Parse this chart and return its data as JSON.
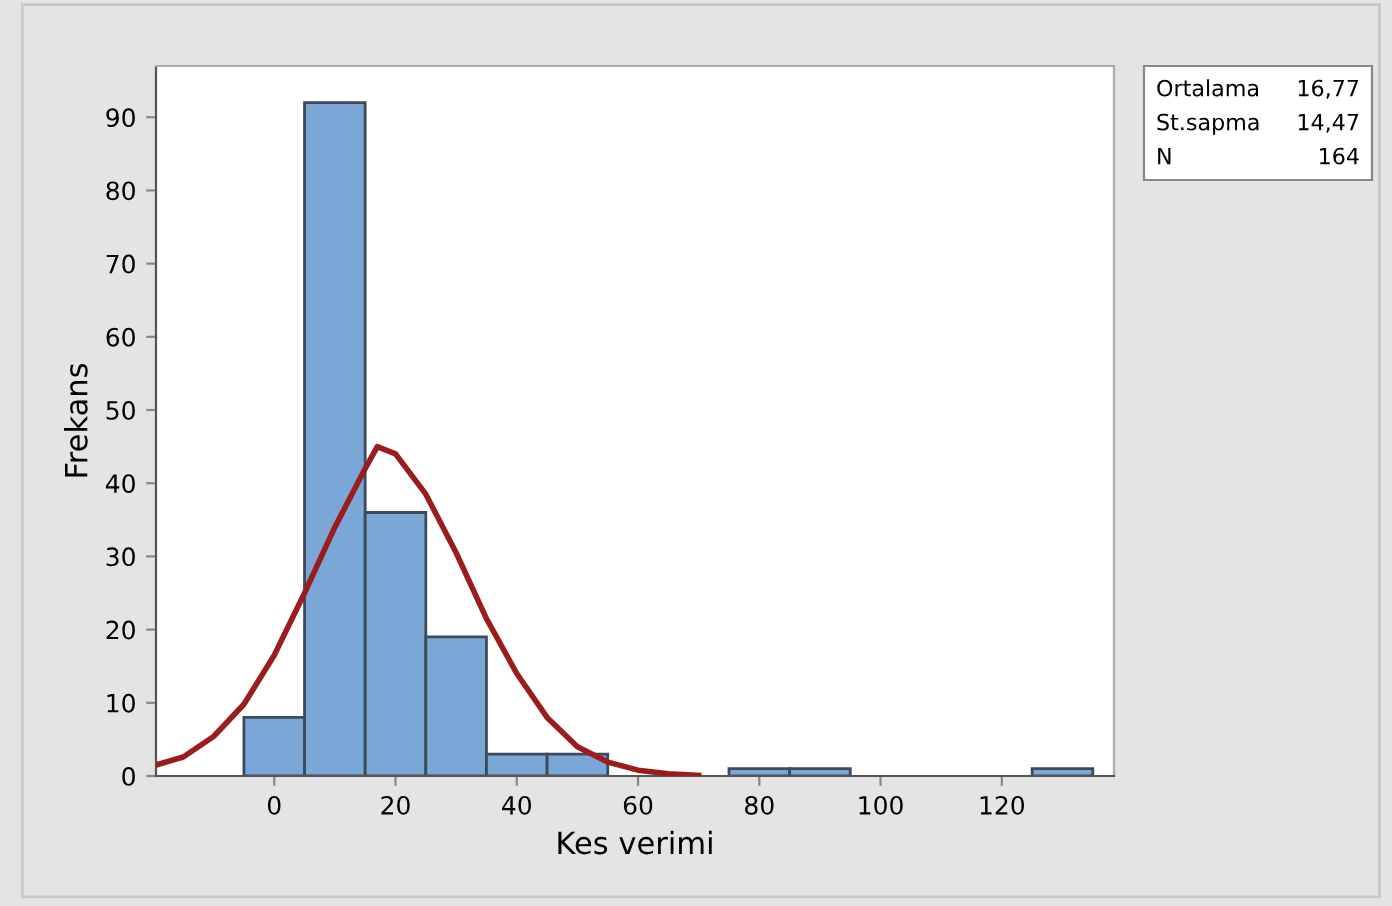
{
  "chart_data": {
    "type": "histogram",
    "xlabel": "Kes verimi",
    "ylabel": "Frekans",
    "bins": [
      -5,
      5,
      15,
      25,
      35,
      45,
      55,
      65,
      75,
      85,
      95,
      105,
      115,
      125,
      135
    ],
    "values": [
      8,
      92,
      36,
      19,
      3,
      3,
      0,
      0,
      1,
      1,
      0,
      0,
      0,
      1
    ],
    "color": "#7ba7d7",
    "series": [
      {
        "type": "line",
        "color": "#9b1c1c",
        "x": [
          -19.5,
          -15,
          -10,
          -5,
          0,
          5,
          10,
          15,
          17,
          20,
          25,
          30,
          35,
          40,
          45,
          50,
          55,
          60,
          65,
          70
        ],
        "values": [
          1.5,
          2.6,
          5.4,
          9.8,
          16.5,
          25,
          34,
          42,
          45,
          44,
          38.5,
          30.5,
          21.5,
          14,
          8,
          4,
          1.9,
          0.8,
          0.3,
          0.1
        ]
      }
    ],
    "xlim": [
      -19.5,
      138.5
    ],
    "ylim": [
      0,
      97
    ],
    "xticks": [
      0,
      20,
      40,
      60,
      80,
      100,
      120
    ],
    "yticks": [
      0,
      10,
      20,
      30,
      40,
      50,
      60,
      70,
      80,
      90
    ],
    "grid": false,
    "legend": false,
    "annotations": [
      "Ortalama 16,77",
      "St.sapma 14,47",
      "N 164"
    ]
  }
}
